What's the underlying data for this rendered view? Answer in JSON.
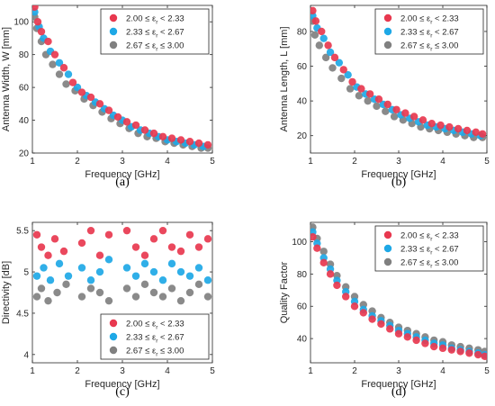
{
  "colors": {
    "series_1": "#e8384f",
    "series_2": "#1ea8e6",
    "series_3": "#808080"
  },
  "chart_data": [
    {
      "type": "scatter",
      "panel_label": "(a)",
      "xlabel": "Frequency [GHz]",
      "ylabel": "Antenna Width, W [mm]",
      "xlim": [
        1,
        5
      ],
      "ylim": [
        20,
        110
      ],
      "xticks": [
        1,
        2,
        3,
        4,
        5
      ],
      "yticks": [
        20,
        40,
        60,
        80,
        100
      ],
      "legend_position": "top-right",
      "series": [
        {
          "name": "2.00 ≤ εr < 2.33",
          "points": [
            [
              1.05,
              109
            ],
            [
              1.12,
              100
            ],
            [
              1.2,
              94
            ],
            [
              1.35,
              88
            ],
            [
              1.5,
              80
            ],
            [
              1.7,
              72
            ],
            [
              1.9,
              63
            ],
            [
              2.1,
              57
            ],
            [
              2.3,
              54
            ],
            [
              2.5,
              50
            ],
            [
              2.7,
              46
            ],
            [
              2.9,
              42
            ],
            [
              3.1,
              39
            ],
            [
              3.3,
              37
            ],
            [
              3.5,
              34
            ],
            [
              3.7,
              32
            ],
            [
              3.9,
              30
            ],
            [
              4.1,
              29
            ],
            [
              4.3,
              28
            ],
            [
              4.5,
              27
            ],
            [
              4.7,
              26
            ],
            [
              4.9,
              25
            ]
          ]
        },
        {
          "name": "2.33 ≤ εr < 2.67",
          "points": [
            [
              1.05,
              106
            ],
            [
              1.15,
              97
            ],
            [
              1.25,
              90
            ],
            [
              1.4,
              82
            ],
            [
              1.6,
              75
            ],
            [
              1.8,
              68
            ],
            [
              2.0,
              60
            ],
            [
              2.2,
              55
            ],
            [
              2.4,
              51
            ],
            [
              2.6,
              47
            ],
            [
              2.8,
              43
            ],
            [
              3.0,
              40
            ],
            [
              3.2,
              36
            ],
            [
              3.4,
              34
            ],
            [
              3.6,
              32
            ],
            [
              3.8,
              30
            ],
            [
              4.0,
              28
            ],
            [
              4.2,
              27
            ],
            [
              4.4,
              26
            ],
            [
              4.6,
              25
            ],
            [
              4.8,
              24
            ]
          ]
        },
        {
          "name": "2.67 ≤ εr ≤ 3.00",
          "points": [
            [
              1.05,
              103
            ],
            [
              1.1,
              96
            ],
            [
              1.2,
              88
            ],
            [
              1.3,
              80
            ],
            [
              1.45,
              74
            ],
            [
              1.6,
              68
            ],
            [
              1.75,
              62
            ],
            [
              1.95,
              58
            ],
            [
              2.15,
              53
            ],
            [
              2.35,
              49
            ],
            [
              2.55,
              45
            ],
            [
              2.75,
              41
            ],
            [
              2.95,
              38
            ],
            [
              3.15,
              35
            ],
            [
              3.35,
              32
            ],
            [
              3.55,
              30
            ],
            [
              3.75,
              29
            ],
            [
              3.95,
              27
            ],
            [
              4.15,
              26
            ],
            [
              4.35,
              25
            ],
            [
              4.55,
              24
            ],
            [
              4.75,
              23
            ],
            [
              4.9,
              23
            ]
          ]
        }
      ]
    },
    {
      "type": "scatter",
      "panel_label": "(b)",
      "xlabel": "Frequency [GHz]",
      "ylabel": "Antenna Length, L [mm]",
      "xlim": [
        1,
        5
      ],
      "ylim": [
        10,
        95
      ],
      "xticks": [
        1,
        2,
        3,
        4,
        5
      ],
      "yticks": [
        20,
        40,
        60,
        80
      ],
      "legend_position": "top-right",
      "series": [
        {
          "name": "2.00 ≤ εr < 2.33",
          "points": [
            [
              1.05,
              92
            ],
            [
              1.12,
              86
            ],
            [
              1.25,
              80
            ],
            [
              1.4,
              72
            ],
            [
              1.55,
              65
            ],
            [
              1.75,
              58
            ],
            [
              1.95,
              51
            ],
            [
              2.15,
              47
            ],
            [
              2.35,
              44
            ],
            [
              2.55,
              41
            ],
            [
              2.75,
              38
            ],
            [
              2.95,
              35
            ],
            [
              3.15,
              33
            ],
            [
              3.35,
              31
            ],
            [
              3.55,
              29
            ],
            [
              3.75,
              27
            ],
            [
              3.95,
              26
            ],
            [
              4.15,
              25
            ],
            [
              4.35,
              24
            ],
            [
              4.55,
              23
            ],
            [
              4.75,
              22
            ],
            [
              4.9,
              21
            ]
          ]
        },
        {
          "name": "2.33 ≤ εr < 2.67",
          "points": [
            [
              1.05,
              89
            ],
            [
              1.15,
              82
            ],
            [
              1.3,
              76
            ],
            [
              1.45,
              68
            ],
            [
              1.65,
              62
            ],
            [
              1.85,
              55
            ],
            [
              2.05,
              48
            ],
            [
              2.25,
              44
            ],
            [
              2.45,
              41
            ],
            [
              2.65,
              38
            ],
            [
              2.85,
              35
            ],
            [
              3.05,
              32
            ],
            [
              3.25,
              30
            ],
            [
              3.45,
              28
            ],
            [
              3.65,
              26
            ],
            [
              3.85,
              25
            ],
            [
              4.05,
              24
            ],
            [
              4.25,
              23
            ],
            [
              4.45,
              22
            ],
            [
              4.65,
              21
            ],
            [
              4.85,
              20
            ]
          ]
        },
        {
          "name": "2.67 ≤ εr ≤ 3.00",
          "points": [
            [
              1.05,
              86
            ],
            [
              1.1,
              78
            ],
            [
              1.2,
              72
            ],
            [
              1.35,
              65
            ],
            [
              1.5,
              59
            ],
            [
              1.7,
              53
            ],
            [
              1.9,
              47
            ],
            [
              2.1,
              43
            ],
            [
              2.3,
              40
            ],
            [
              2.5,
              37
            ],
            [
              2.7,
              34
            ],
            [
              2.9,
              31
            ],
            [
              3.1,
              29
            ],
            [
              3.3,
              27
            ],
            [
              3.5,
              25
            ],
            [
              3.7,
              24
            ],
            [
              3.9,
              23
            ],
            [
              4.1,
              22
            ],
            [
              4.3,
              21
            ],
            [
              4.5,
              20
            ],
            [
              4.7,
              19
            ],
            [
              4.9,
              19
            ]
          ]
        }
      ]
    },
    {
      "type": "scatter",
      "panel_label": "(c)",
      "xlabel": "Frequency [GHz]",
      "ylabel": "Directivity [dB]",
      "xlim": [
        1,
        5
      ],
      "ylim": [
        3.9,
        5.6
      ],
      "xticks": [
        1,
        2,
        3,
        4,
        5
      ],
      "yticks": [
        4,
        4.5,
        5,
        5.5
      ],
      "legend_position": "bottom-right",
      "series": [
        {
          "name": "2.00 ≤ εr < 2.33",
          "points": [
            [
              1.1,
              5.45
            ],
            [
              1.2,
              5.3
            ],
            [
              1.35,
              5.2
            ],
            [
              1.5,
              5.4
            ],
            [
              1.7,
              5.25
            ],
            [
              2.1,
              5.35
            ],
            [
              2.3,
              5.5
            ],
            [
              2.5,
              5.2
            ],
            [
              2.7,
              5.45
            ],
            [
              3.1,
              5.5
            ],
            [
              3.3,
              5.3
            ],
            [
              3.5,
              5.2
            ],
            [
              3.7,
              5.4
            ],
            [
              3.9,
              5.5
            ],
            [
              4.1,
              5.3
            ],
            [
              4.3,
              5.25
            ],
            [
              4.5,
              5.45
            ],
            [
              4.7,
              5.3
            ],
            [
              4.9,
              5.4
            ]
          ]
        },
        {
          "name": "2.33 ≤ εr < 2.67",
          "points": [
            [
              1.1,
              4.95
            ],
            [
              1.25,
              5.05
            ],
            [
              1.4,
              4.9
            ],
            [
              1.6,
              5.1
            ],
            [
              1.8,
              4.95
            ],
            [
              2.1,
              5.05
            ],
            [
              2.3,
              4.9
            ],
            [
              2.5,
              5.0
            ],
            [
              2.7,
              5.15
            ],
            [
              3.1,
              5.05
            ],
            [
              3.3,
              4.95
            ],
            [
              3.5,
              5.1
            ],
            [
              3.7,
              5.0
            ],
            [
              3.9,
              4.9
            ],
            [
              4.1,
              5.1
            ],
            [
              4.3,
              5.0
            ],
            [
              4.5,
              4.95
            ],
            [
              4.7,
              5.05
            ],
            [
              4.9,
              4.9
            ]
          ]
        },
        {
          "name": "2.67 ≤ εr ≤ 3.00",
          "points": [
            [
              1.1,
              4.7
            ],
            [
              1.2,
              4.8
            ],
            [
              1.35,
              4.65
            ],
            [
              1.55,
              4.75
            ],
            [
              1.75,
              4.85
            ],
            [
              2.1,
              4.7
            ],
            [
              2.3,
              4.8
            ],
            [
              2.5,
              4.75
            ],
            [
              2.7,
              4.65
            ],
            [
              3.1,
              4.8
            ],
            [
              3.3,
              4.7
            ],
            [
              3.5,
              4.85
            ],
            [
              3.7,
              4.75
            ],
            [
              3.9,
              4.7
            ],
            [
              4.1,
              4.8
            ],
            [
              4.3,
              4.65
            ],
            [
              4.5,
              4.75
            ],
            [
              4.7,
              4.85
            ],
            [
              4.9,
              4.7
            ]
          ]
        }
      ]
    },
    {
      "type": "scatter",
      "panel_label": "(d)",
      "xlabel": "Frequency [GHz]",
      "ylabel": "Quality Factor",
      "xlim": [
        1,
        5
      ],
      "ylim": [
        25,
        112
      ],
      "xticks": [
        1,
        2,
        3,
        4,
        5
      ],
      "yticks": [
        40,
        60,
        80,
        100
      ],
      "legend_position": "top-right",
      "series": [
        {
          "name": "2.00 ≤ εr < 2.33",
          "points": [
            [
              1.05,
              103
            ],
            [
              1.15,
              96
            ],
            [
              1.3,
              87
            ],
            [
              1.45,
              80
            ],
            [
              1.6,
              73
            ],
            [
              1.8,
              66
            ],
            [
              2.0,
              60
            ],
            [
              2.2,
              56
            ],
            [
              2.4,
              52
            ],
            [
              2.6,
              49
            ],
            [
              2.8,
              46
            ],
            [
              3.0,
              43
            ],
            [
              3.2,
              41
            ],
            [
              3.4,
              39
            ],
            [
              3.6,
              37
            ],
            [
              3.8,
              35
            ],
            [
              4.0,
              34
            ],
            [
              4.2,
              33
            ],
            [
              4.4,
              32
            ],
            [
              4.6,
              31
            ],
            [
              4.8,
              30
            ],
            [
              4.95,
              29
            ]
          ]
        },
        {
          "name": "2.33 ≤ εr < 2.67",
          "points": [
            [
              1.05,
              106
            ],
            [
              1.15,
              99
            ],
            [
              1.3,
              90
            ],
            [
              1.45,
              83
            ],
            [
              1.6,
              76
            ],
            [
              1.8,
              69
            ],
            [
              2.0,
              63
            ],
            [
              2.2,
              58
            ],
            [
              2.4,
              54
            ],
            [
              2.6,
              51
            ],
            [
              2.8,
              48
            ],
            [
              3.0,
              45
            ],
            [
              3.2,
              43
            ],
            [
              3.4,
              41
            ],
            [
              3.6,
              39
            ],
            [
              3.8,
              37
            ],
            [
              4.0,
              36
            ],
            [
              4.2,
              34
            ],
            [
              4.4,
              33
            ],
            [
              4.6,
              32
            ],
            [
              4.8,
              31
            ],
            [
              4.95,
              30
            ]
          ]
        },
        {
          "name": "2.67 ≤ εr ≤ 3.00",
          "points": [
            [
              1.05,
              109
            ],
            [
              1.15,
              102
            ],
            [
              1.3,
              94
            ],
            [
              1.45,
              86
            ],
            [
              1.6,
              79
            ],
            [
              1.8,
              72
            ],
            [
              2.0,
              66
            ],
            [
              2.2,
              61
            ],
            [
              2.4,
              57
            ],
            [
              2.6,
              53
            ],
            [
              2.8,
              50
            ],
            [
              3.0,
              47
            ],
            [
              3.2,
              45
            ],
            [
              3.4,
              43
            ],
            [
              3.6,
              41
            ],
            [
              3.8,
              39
            ],
            [
              4.0,
              38
            ],
            [
              4.2,
              36
            ],
            [
              4.4,
              35
            ],
            [
              4.6,
              34
            ],
            [
              4.8,
              33
            ],
            [
              4.95,
              32
            ]
          ]
        }
      ]
    }
  ]
}
